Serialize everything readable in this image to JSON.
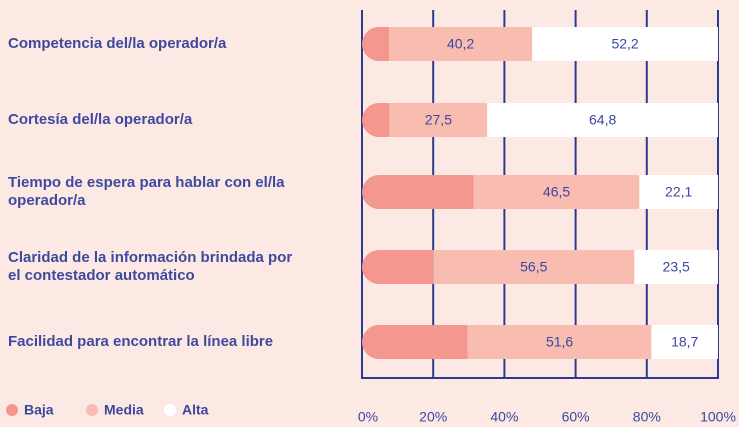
{
  "chart_data": {
    "type": "stacked-bar-horizontal",
    "categories": [
      "Competencia del/la operador/a",
      "Cortesía del/la operador/a",
      "Tiempo de espera para hablar con el/la operador/a",
      "Claridad de la información brindada por el contestador automático",
      "Facilidad para encontrar la línea libre"
    ],
    "series": [
      {
        "name": "Baja",
        "color": "#f4978e",
        "values": [
          7.6,
          7.7,
          31.4,
          20,
          29.7
        ]
      },
      {
        "name": "Media",
        "color": "#f9bcb0",
        "values": [
          40.2,
          27.5,
          46.5,
          56.5,
          51.6
        ],
        "value_labels": [
          "40,2",
          "27,5",
          "46,5",
          "56,5",
          "51,6"
        ]
      },
      {
        "name": "Alta",
        "color": "#ffffff",
        "values": [
          52.2,
          64.8,
          22.1,
          23.5,
          18.7
        ],
        "value_labels": [
          "52,2",
          "64,8",
          "22,1",
          "23,5",
          "18,7"
        ]
      }
    ],
    "xlim": [
      0,
      100
    ],
    "xticks": [
      {
        "value": 0,
        "label": "0%"
      },
      {
        "value": 20,
        "label": "20%"
      },
      {
        "value": 40,
        "label": "40%"
      },
      {
        "value": 60,
        "label": "60%"
      },
      {
        "value": 80,
        "label": "80%"
      },
      {
        "value": 100,
        "label": "100%"
      }
    ],
    "grid": true
  }
}
